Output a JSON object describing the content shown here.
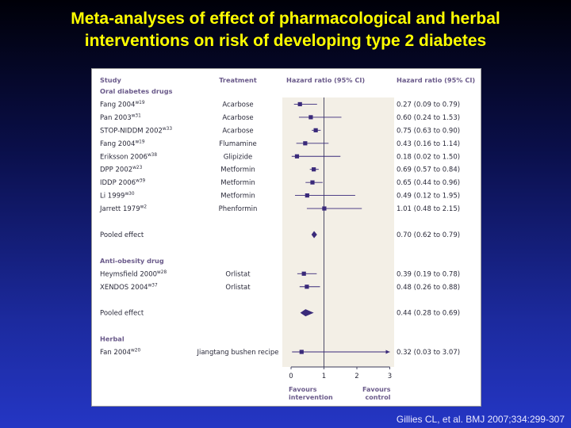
{
  "slide": {
    "title_line1": "Meta-analyses of effect of pharmacological and herbal",
    "title_line2": "interventions on risk of developing type 2 diabetes",
    "citation": "Gillies CL, et al. BMJ 2007;334:299-307"
  },
  "colors": {
    "title": "#ffff00",
    "header_text": "#6a5a8a",
    "marker": "#3a2a7a",
    "shade": "#f3efe6"
  },
  "chart_data": {
    "type": "forest",
    "headers": {
      "study": "Study",
      "treatment": "Treatment",
      "plot": "Hazard ratio (95% CI)",
      "ci_text": "Hazard ratio (95% CI)"
    },
    "xlim": [
      0,
      3
    ],
    "xticks": [
      0,
      1,
      2,
      3
    ],
    "null_line": 1,
    "axis_left_label": [
      "Favours",
      "intervention"
    ],
    "axis_right_label": [
      "Favours",
      "control"
    ],
    "rows": [
      {
        "kind": "group",
        "label": "Oral diabetes drugs"
      },
      {
        "kind": "study",
        "study": "Fang 2004",
        "sup": "w19",
        "treatment": "Acarbose",
        "hr": 0.27,
        "lo": 0.09,
        "hi": 0.79,
        "ci_text": "0.27 (0.09 to 0.79)"
      },
      {
        "kind": "study",
        "study": "Pan 2003",
        "sup": "w31",
        "treatment": "Acarbose",
        "hr": 0.6,
        "lo": 0.24,
        "hi": 1.53,
        "ci_text": "0.60 (0.24 to 1.53)"
      },
      {
        "kind": "study",
        "study": "STOP-NIDDM 2002",
        "sup": "w33",
        "treatment": "Acarbose",
        "hr": 0.75,
        "lo": 0.63,
        "hi": 0.9,
        "ci_text": "0.75 (0.63 to 0.90)"
      },
      {
        "kind": "study",
        "study": "Fang 2004",
        "sup": "w19",
        "treatment": "Flumamine",
        "hr": 0.43,
        "lo": 0.16,
        "hi": 1.14,
        "ci_text": "0.43 (0.16 to 1.14)"
      },
      {
        "kind": "study",
        "study": "Eriksson 2006",
        "sup": "w38",
        "treatment": "Glipizide",
        "hr": 0.18,
        "lo": 0.02,
        "hi": 1.5,
        "ci_text": "0.18 (0.02 to 1.50)"
      },
      {
        "kind": "study",
        "study": "DPP 2002",
        "sup": "w23",
        "treatment": "Metformin",
        "hr": 0.69,
        "lo": 0.57,
        "hi": 0.84,
        "ci_text": "0.69 (0.57 to 0.84)"
      },
      {
        "kind": "study",
        "study": "IDDP 2006",
        "sup": "w39",
        "treatment": "Metformin",
        "hr": 0.65,
        "lo": 0.44,
        "hi": 0.96,
        "ci_text": "0.65 (0.44 to 0.96)"
      },
      {
        "kind": "study",
        "study": "Li 1999",
        "sup": "w30",
        "treatment": "Metformin",
        "hr": 0.49,
        "lo": 0.12,
        "hi": 1.95,
        "ci_text": "0.49 (0.12 to 1.95)"
      },
      {
        "kind": "study",
        "study": "Jarrett 1979",
        "sup": "w2",
        "treatment": "Phenformin",
        "hr": 1.01,
        "lo": 0.48,
        "hi": 2.15,
        "ci_text": "1.01 (0.48 to 2.15)"
      },
      {
        "kind": "gap"
      },
      {
        "kind": "pooled",
        "study": "Pooled effect",
        "hr": 0.7,
        "lo": 0.62,
        "hi": 0.79,
        "ci_text": "0.70 (0.62 to 0.79)"
      },
      {
        "kind": "gap"
      },
      {
        "kind": "group",
        "label": "Anti-obesity drug"
      },
      {
        "kind": "study",
        "study": "Heymsfield 2000",
        "sup": "w28",
        "treatment": "Orlistat",
        "hr": 0.39,
        "lo": 0.19,
        "hi": 0.78,
        "ci_text": "0.39 (0.19 to 0.78)"
      },
      {
        "kind": "study",
        "study": "XENDOS 2004",
        "sup": "w37",
        "treatment": "Orlistat",
        "hr": 0.48,
        "lo": 0.26,
        "hi": 0.88,
        "ci_text": "0.48 (0.26 to 0.88)"
      },
      {
        "kind": "gap"
      },
      {
        "kind": "pooled",
        "study": "Pooled effect",
        "hr": 0.44,
        "lo": 0.28,
        "hi": 0.69,
        "ci_text": "0.44 (0.28 to 0.69)"
      },
      {
        "kind": "gap"
      },
      {
        "kind": "group",
        "label": "Herbal"
      },
      {
        "kind": "study",
        "study": "Fan 2004",
        "sup": "w20",
        "treatment": "Jiangtang bushen recipe",
        "hr": 0.32,
        "lo": 0.03,
        "hi": 3.07,
        "ci_text": "0.32 (0.03 to 3.07)"
      }
    ]
  }
}
